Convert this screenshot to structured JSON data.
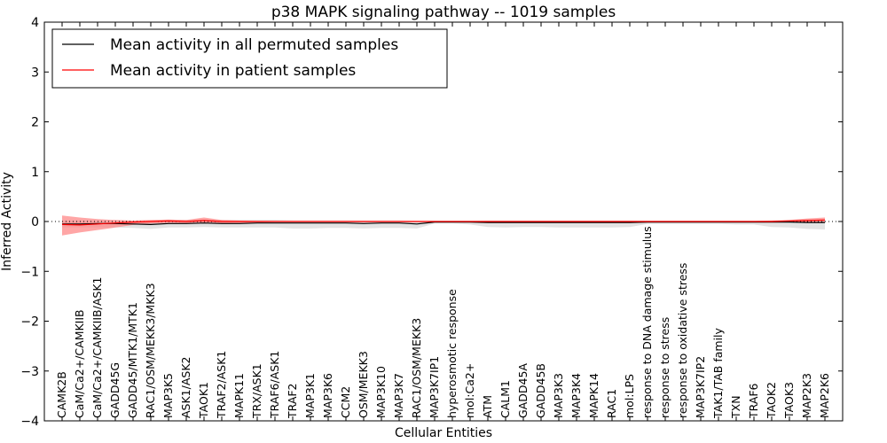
{
  "chart_data": {
    "type": "line",
    "title": "p38 MAPK signaling pathway -- 1019 samples",
    "xlabel": "Cellular Entities",
    "ylabel": "Inferred Activity",
    "ylim": [
      -4,
      4
    ],
    "yticks": [
      -4,
      -3,
      -2,
      -1,
      0,
      1,
      2,
      3,
      4
    ],
    "legend_position": "top-left",
    "colors": {
      "permuted": "#000000",
      "patient": "#ff0000",
      "permuted_band": "#d9d9d9",
      "patient_band": "#ff8080"
    },
    "categories": [
      "CAMK2B",
      "CaM/Ca2+/CAMKIIB",
      "CaM/Ca2+/CAMKIIB/ASK1",
      "GADD45G",
      "GADD45/MTK1/MTK1",
      "RAC1/OSM/MEKK3/MKK3",
      "MAP3K5",
      "ASK1/ASK2",
      "TAOK1",
      "TRAF2/ASK1",
      "MAPK11",
      "TRX/ASK1",
      "TRAF6/ASK1",
      "TRAF2",
      "MAP3K1",
      "MAP3K6",
      "CCM2",
      "OSM/MEKK3",
      "MAP3K10",
      "MAP3K7",
      "RAC1/OSM/MEKK3",
      "MAP3K7IP1",
      "hyperosmotic response",
      "mol:Ca2+",
      "ATM",
      "CALM1",
      "GADD45A",
      "GADD45B",
      "MAP3K3",
      "MAP3K4",
      "MAPK14",
      "RAC1",
      "mol:LPS",
      "response to DNA damage stimulus",
      "response to stress",
      "response to oxidative stress",
      "MAP3K7IP2",
      "TAK1/TAB family",
      "TXN",
      "TRAF6",
      "TAOK2",
      "TAOK3",
      "MAP2K3",
      "MAP2K6"
    ],
    "series": [
      {
        "name": "Mean activity in all permuted samples",
        "color": "#000000",
        "values": [
          -0.05,
          -0.05,
          -0.04,
          -0.04,
          -0.05,
          -0.06,
          -0.04,
          -0.04,
          -0.03,
          -0.04,
          -0.04,
          -0.03,
          -0.03,
          -0.03,
          -0.03,
          -0.03,
          -0.03,
          -0.04,
          -0.03,
          -0.03,
          -0.05,
          -0.01,
          -0.01,
          -0.01,
          -0.02,
          -0.02,
          -0.02,
          -0.02,
          -0.02,
          -0.02,
          -0.02,
          -0.02,
          -0.02,
          -0.01,
          -0.01,
          -0.01,
          -0.01,
          -0.01,
          -0.01,
          -0.01,
          -0.01,
          -0.01,
          -0.02,
          -0.02
        ],
        "band_upper": [
          0.02,
          0.02,
          0.02,
          0.02,
          0.01,
          0.02,
          0.03,
          0.03,
          0.03,
          0.03,
          0.03,
          0.03,
          0.03,
          0.02,
          0.02,
          0.02,
          0.02,
          0.02,
          0.02,
          0.02,
          0.01,
          0.01,
          0.01,
          0.01,
          0.02,
          0.02,
          0.02,
          0.02,
          0.02,
          0.02,
          0.02,
          0.02,
          0.02,
          0.01,
          0.01,
          0.01,
          0.01,
          0.01,
          0.01,
          0.01,
          0.02,
          0.02,
          0.03,
          0.04
        ],
        "band_lower": [
          -0.12,
          -0.12,
          -0.12,
          -0.12,
          -0.13,
          -0.15,
          -0.12,
          -0.12,
          -0.11,
          -0.12,
          -0.12,
          -0.12,
          -0.12,
          -0.14,
          -0.14,
          -0.13,
          -0.13,
          -0.14,
          -0.13,
          -0.13,
          -0.14,
          -0.04,
          -0.04,
          -0.06,
          -0.11,
          -0.12,
          -0.11,
          -0.11,
          -0.12,
          -0.12,
          -0.12,
          -0.12,
          -0.11,
          -0.05,
          -0.05,
          -0.05,
          -0.05,
          -0.05,
          -0.06,
          -0.06,
          -0.11,
          -0.12,
          -0.15,
          -0.16
        ]
      },
      {
        "name": "Mean activity in patient samples",
        "color": "#ff0000",
        "values": [
          -0.06,
          -0.07,
          -0.05,
          -0.03,
          -0.01,
          0.0,
          0.01,
          0.0,
          0.02,
          0.0,
          0.0,
          0.0,
          0.0,
          0.0,
          0.0,
          0.0,
          0.0,
          0.0,
          0.0,
          0.0,
          0.0,
          0.0,
          0.0,
          0.0,
          0.0,
          0.0,
          0.0,
          0.0,
          0.0,
          0.0,
          0.0,
          0.0,
          0.0,
          0.0,
          0.0,
          0.0,
          0.0,
          0.0,
          0.0,
          0.0,
          0.0,
          0.01,
          0.02,
          0.03
        ],
        "band_upper": [
          0.12,
          0.08,
          0.05,
          0.03,
          0.02,
          0.03,
          0.04,
          0.03,
          0.08,
          0.03,
          0.02,
          0.01,
          0.01,
          0.01,
          0.01,
          0.01,
          0.01,
          0.01,
          0.01,
          0.01,
          0.01,
          0.01,
          0.01,
          0.01,
          0.01,
          0.01,
          0.01,
          0.01,
          0.01,
          0.01,
          0.01,
          0.01,
          0.01,
          0.01,
          0.01,
          0.01,
          0.01,
          0.01,
          0.01,
          0.01,
          0.02,
          0.03,
          0.06,
          0.08
        ],
        "band_lower": [
          -0.28,
          -0.22,
          -0.17,
          -0.12,
          -0.07,
          -0.04,
          -0.03,
          -0.04,
          -0.03,
          -0.04,
          -0.03,
          -0.02,
          -0.01,
          -0.01,
          -0.01,
          -0.01,
          -0.01,
          -0.01,
          -0.01,
          -0.01,
          -0.01,
          -0.01,
          -0.01,
          -0.01,
          -0.01,
          -0.01,
          -0.01,
          -0.01,
          -0.01,
          -0.01,
          -0.01,
          -0.01,
          -0.01,
          -0.01,
          -0.01,
          -0.01,
          -0.01,
          -0.01,
          -0.01,
          -0.01,
          -0.01,
          -0.01,
          -0.01,
          -0.02
        ]
      }
    ],
    "reference_line": {
      "y": 0,
      "style": "dotted"
    }
  }
}
